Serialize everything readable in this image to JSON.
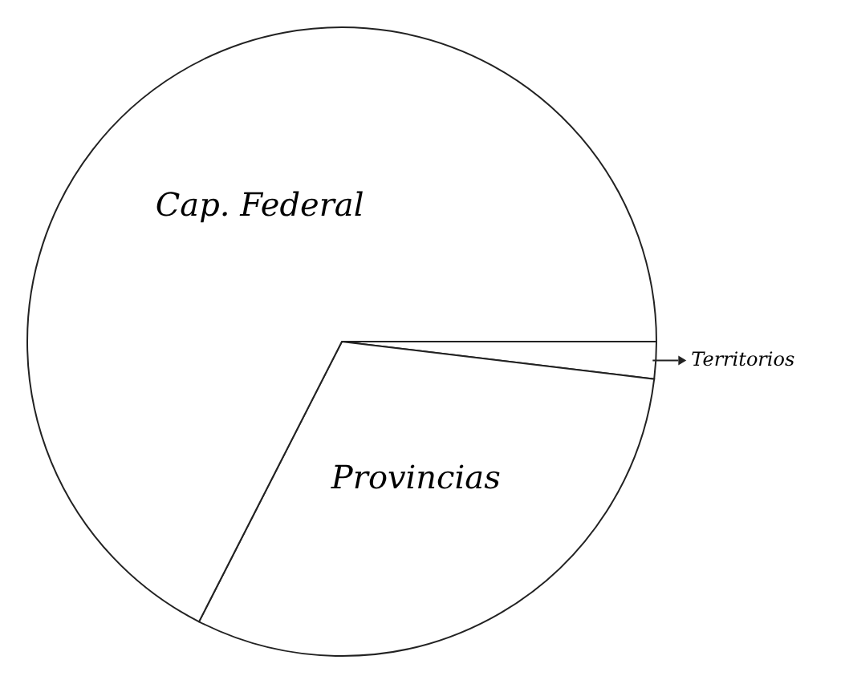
{
  "chart_data": {
    "type": "pie",
    "categories": [
      "Territorios",
      "Provincias",
      "Cap. Federal"
    ],
    "values": [
      1.9,
      30.6,
      67.5
    ],
    "colors": [
      "#ffffff",
      "#ffffff",
      "#ffffff"
    ]
  }
}
